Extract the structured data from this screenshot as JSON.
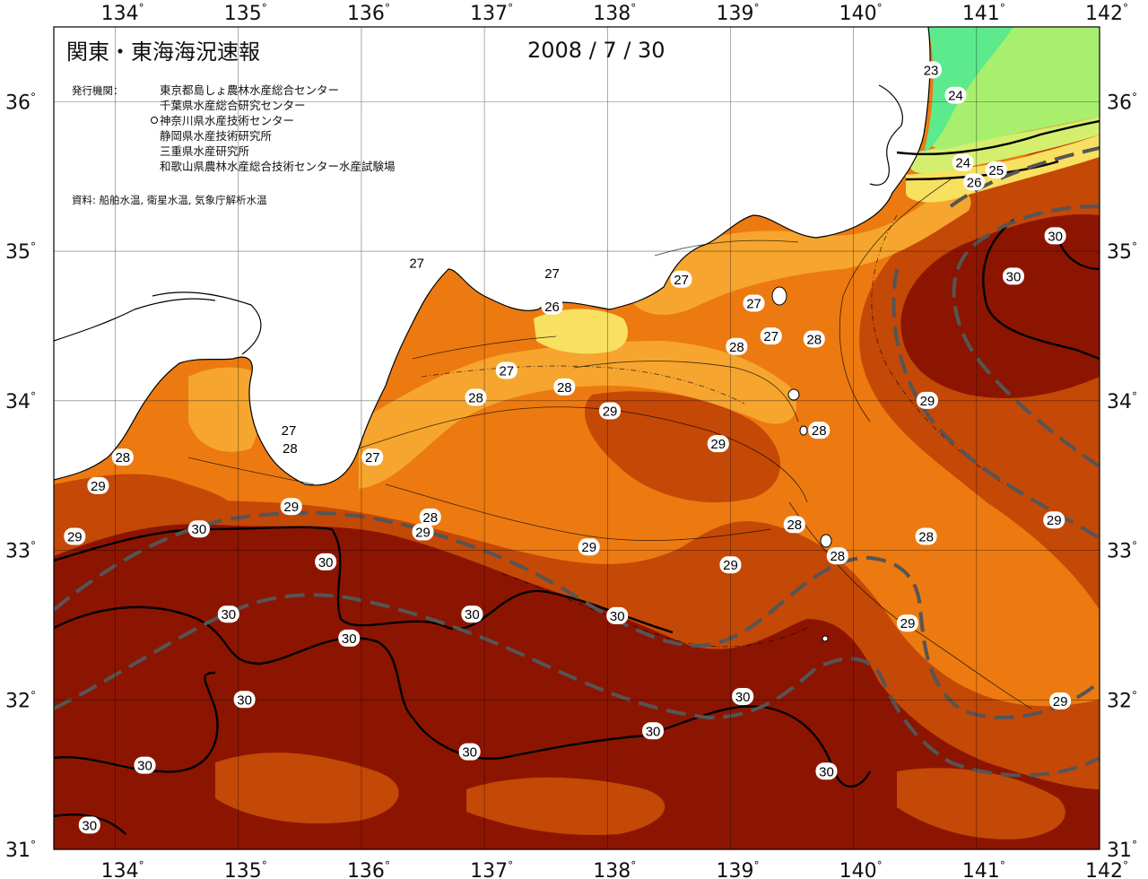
{
  "title": "関東・東海海況速報",
  "date": "2008 / 7 / 30",
  "agencies_label": "発行機関：",
  "agencies": [
    "東京都島しょ農林水産総合センター",
    "千葉県水産総合研究センター",
    "神奈川県水産技術センター",
    "静岡県水産技術研究所",
    "三重県水産研究所",
    "和歌山県農林水産総合技術センター水産試験場"
  ],
  "source_note": "資料: 船舶水温, 衛星水温, 気象庁解析水温",
  "lon_ticks": [
    "134",
    "135",
    "136",
    "137",
    "138",
    "139",
    "140",
    "141",
    "142"
  ],
  "lat_ticks": [
    "36",
    "35",
    "34",
    "33",
    "32",
    "31"
  ],
  "degree_symbol": "°",
  "colors": {
    "t23": "#5cea8c",
    "t24": "#a8ef6e",
    "t25": "#d4ee6e",
    "t26": "#f8e060",
    "t27": "#f6a52e",
    "t28": "#ec7a10",
    "t29": "#c44806",
    "t30": "#8c1502",
    "land": "#ffffff",
    "kuroshio": "#555555"
  },
  "isotherm_labels": [
    {
      "text": "23",
      "lon": 140.63,
      "lat": 36.21
    },
    {
      "text": "24",
      "lon": 140.83,
      "lat": 36.04
    },
    {
      "text": "24",
      "lon": 140.89,
      "lat": 35.59
    },
    {
      "text": "25",
      "lon": 141.16,
      "lat": 35.54
    },
    {
      "text": "26",
      "lon": 140.98,
      "lat": 35.46
    },
    {
      "text": "30",
      "lon": 141.64,
      "lat": 35.1
    },
    {
      "text": "30",
      "lon": 141.3,
      "lat": 34.83
    },
    {
      "text": "27",
      "lon": 136.45,
      "lat": 34.92
    },
    {
      "text": "27",
      "lon": 137.55,
      "lat": 34.85
    },
    {
      "text": "26",
      "lon": 137.55,
      "lat": 34.63
    },
    {
      "text": "27",
      "lon": 138.6,
      "lat": 34.81
    },
    {
      "text": "27",
      "lon": 139.19,
      "lat": 34.65
    },
    {
      "text": "27",
      "lon": 139.33,
      "lat": 34.43
    },
    {
      "text": "28",
      "lon": 139.05,
      "lat": 34.36
    },
    {
      "text": "28",
      "lon": 139.68,
      "lat": 34.41
    },
    {
      "text": "27",
      "lon": 137.18,
      "lat": 34.2
    },
    {
      "text": "28",
      "lon": 136.93,
      "lat": 34.02
    },
    {
      "text": "28",
      "lon": 137.65,
      "lat": 34.09
    },
    {
      "text": "29",
      "lon": 138.02,
      "lat": 33.93
    },
    {
      "text": "29",
      "lon": 140.6,
      "lat": 34.0
    },
    {
      "text": "28",
      "lon": 139.72,
      "lat": 33.8
    },
    {
      "text": "29",
      "lon": 138.9,
      "lat": 33.71
    },
    {
      "text": "27",
      "lon": 135.41,
      "lat": 33.8
    },
    {
      "text": "28",
      "lon": 135.42,
      "lat": 33.68
    },
    {
      "text": "27",
      "lon": 136.09,
      "lat": 33.62
    },
    {
      "text": "28",
      "lon": 134.06,
      "lat": 33.62
    },
    {
      "text": "29",
      "lon": 133.86,
      "lat": 33.43
    },
    {
      "text": "29",
      "lon": 135.43,
      "lat": 33.29
    },
    {
      "text": "28",
      "lon": 136.56,
      "lat": 33.22
    },
    {
      "text": "29",
      "lon": 136.5,
      "lat": 33.12
    },
    {
      "text": "30",
      "lon": 134.68,
      "lat": 33.14
    },
    {
      "text": "29",
      "lon": 133.67,
      "lat": 33.09
    },
    {
      "text": "28",
      "lon": 139.52,
      "lat": 33.17
    },
    {
      "text": "28",
      "lon": 140.59,
      "lat": 33.09
    },
    {
      "text": "29",
      "lon": 141.63,
      "lat": 33.2
    },
    {
      "text": "29",
      "lon": 137.85,
      "lat": 33.02
    },
    {
      "text": "28",
      "lon": 139.87,
      "lat": 32.96
    },
    {
      "text": "29",
      "lon": 139.0,
      "lat": 32.9
    },
    {
      "text": "30",
      "lon": 135.71,
      "lat": 32.92
    },
    {
      "text": "30",
      "lon": 134.92,
      "lat": 32.57
    },
    {
      "text": "30",
      "lon": 136.9,
      "lat": 32.57
    },
    {
      "text": "30",
      "lon": 138.08,
      "lat": 32.56
    },
    {
      "text": "29",
      "lon": 140.44,
      "lat": 32.51
    },
    {
      "text": "30",
      "lon": 135.9,
      "lat": 32.41
    },
    {
      "text": "30",
      "lon": 139.1,
      "lat": 32.02
    },
    {
      "text": "29",
      "lon": 141.68,
      "lat": 31.99
    },
    {
      "text": "30",
      "lon": 135.05,
      "lat": 32.0
    },
    {
      "text": "30",
      "lon": 138.37,
      "lat": 31.79
    },
    {
      "text": "30",
      "lon": 136.88,
      "lat": 31.65
    },
    {
      "text": "30",
      "lon": 134.24,
      "lat": 31.56
    },
    {
      "text": "30",
      "lon": 139.78,
      "lat": 31.52
    },
    {
      "text": "30",
      "lon": 133.79,
      "lat": 31.16
    }
  ]
}
